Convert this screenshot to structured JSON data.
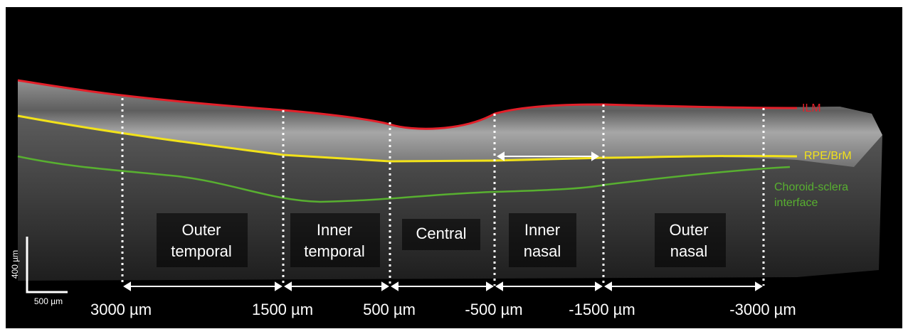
{
  "layers": {
    "ilm": "ILM",
    "rpe": "RPE/BrM",
    "choroid": [
      "Choroid-sclera",
      "interface"
    ]
  },
  "regions": [
    [
      "Outer",
      "temporal"
    ],
    [
      "Inner",
      "temporal"
    ],
    [
      "Central"
    ],
    [
      "Inner",
      "nasal"
    ],
    [
      "Outer",
      "nasal"
    ]
  ],
  "distances": [
    "3000 µm",
    "1500 µm",
    "500 µm",
    "-500 µm",
    "-1500 µm",
    "-3000 µm"
  ],
  "scale_bar": {
    "vertical": "400 µm",
    "horizontal": "500 µm"
  }
}
